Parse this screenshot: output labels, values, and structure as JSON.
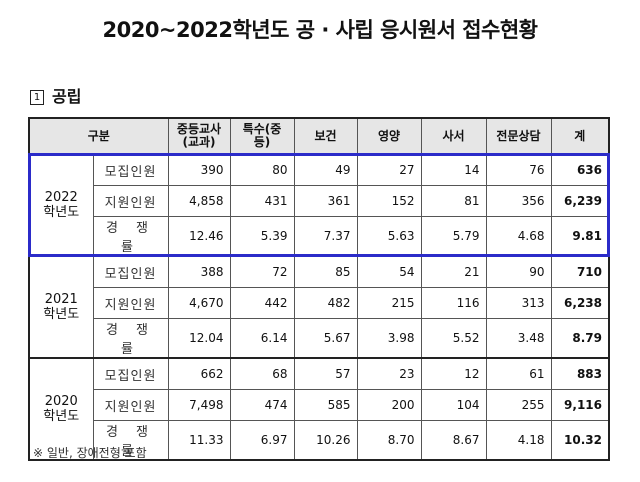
{
  "title": "2020~2022학년도 공 · 사립 응시원서 접수현황",
  "section": {
    "number": "1",
    "label": "공립"
  },
  "table": {
    "headers": {
      "category": "구분",
      "columns": [
        "중등교사\n(교과)",
        "특수(중등)",
        "보건",
        "영양",
        "사서",
        "전문상담",
        "계"
      ]
    },
    "groups": [
      {
        "year": "2022",
        "year_suffix": "학년도",
        "highlighted": true,
        "rows": [
          {
            "label": "모집인원",
            "values": [
              "390",
              "80",
              "49",
              "27",
              "14",
              "76"
            ],
            "total": "636"
          },
          {
            "label": "지원인원",
            "values": [
              "4,858",
              "431",
              "361",
              "152",
              "81",
              "356"
            ],
            "total": "6,239"
          },
          {
            "label": "경 쟁 률",
            "values": [
              "12.46",
              "5.39",
              "7.37",
              "5.63",
              "5.79",
              "4.68"
            ],
            "total": "9.81"
          }
        ]
      },
      {
        "year": "2021",
        "year_suffix": "학년도",
        "highlighted": false,
        "rows": [
          {
            "label": "모집인원",
            "values": [
              "388",
              "72",
              "85",
              "54",
              "21",
              "90"
            ],
            "total": "710"
          },
          {
            "label": "지원인원",
            "values": [
              "4,670",
              "442",
              "482",
              "215",
              "116",
              "313"
            ],
            "total": "6,238"
          },
          {
            "label": "경 쟁 률",
            "values": [
              "12.04",
              "6.14",
              "5.67",
              "3.98",
              "5.52",
              "3.48"
            ],
            "total": "8.79"
          }
        ]
      },
      {
        "year": "2020",
        "year_suffix": "학년도",
        "highlighted": false,
        "rows": [
          {
            "label": "모집인원",
            "values": [
              "662",
              "68",
              "57",
              "23",
              "12",
              "61"
            ],
            "total": "883"
          },
          {
            "label": "지원인원",
            "values": [
              "7,498",
              "474",
              "585",
              "200",
              "104",
              "255"
            ],
            "total": "9,116"
          },
          {
            "label": "경 쟁 률",
            "values": [
              "11.33",
              "6.97",
              "10.26",
              "8.70",
              "8.67",
              "4.18"
            ],
            "total": "10.32"
          }
        ]
      }
    ]
  },
  "note": "※ 일반, 장애전형 포함",
  "colors": {
    "highlight_border": "#2b2bc9",
    "header_bg": "#e6e6e6"
  }
}
